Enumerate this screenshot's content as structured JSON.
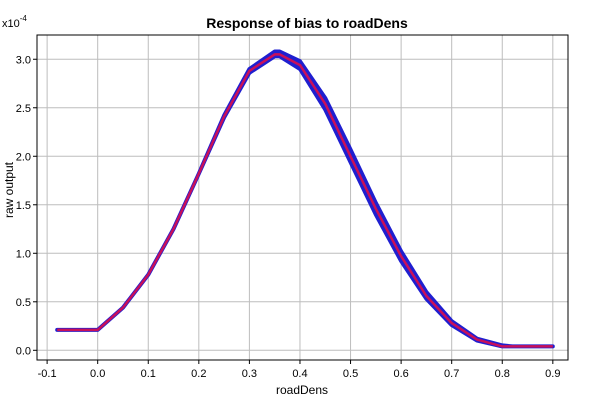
{
  "chart_data": {
    "type": "line",
    "title": "Response of bias to roadDens",
    "xlabel": "roadDens",
    "ylabel": "raw output",
    "y_multiplier": {
      "base": "x10",
      "exponent": "-4"
    },
    "xlim": [
      -0.12,
      0.93
    ],
    "ylim": [
      -0.1,
      3.25
    ],
    "x_ticks": [
      -0.1,
      0.0,
      0.1,
      0.2,
      0.3,
      0.4,
      0.5,
      0.6,
      0.7,
      0.8,
      0.9
    ],
    "x_tick_labels": [
      "-0.1",
      "0.0",
      "0.1",
      "0.2",
      "0.3",
      "0.4",
      "0.5",
      "0.6",
      "0.7",
      "0.8",
      "0.9"
    ],
    "y_ticks": [
      0.0,
      0.5,
      1.0,
      1.5,
      2.0,
      2.5,
      3.0
    ],
    "y_tick_labels": [
      "0.0",
      "0.5",
      "1.0",
      "1.5",
      "2.0",
      "2.5",
      "3.0"
    ],
    "grid": true,
    "series": [
      {
        "color": "#1f1fd0",
        "style": "band",
        "x": [
          -0.08,
          0.0,
          0.05,
          0.1,
          0.15,
          0.2,
          0.25,
          0.3,
          0.35,
          0.36,
          0.4,
          0.45,
          0.5,
          0.55,
          0.6,
          0.65,
          0.7,
          0.75,
          0.8,
          0.82,
          0.9
        ],
        "upper": [
          0.21,
          0.21,
          0.44,
          0.78,
          1.25,
          1.82,
          2.42,
          2.9,
          3.08,
          3.08,
          2.98,
          2.6,
          2.07,
          1.52,
          1.02,
          0.6,
          0.3,
          0.12,
          0.05,
          0.04,
          0.04
        ],
        "lower": [
          0.21,
          0.21,
          0.44,
          0.78,
          1.25,
          1.82,
          2.4,
          2.86,
          3.03,
          3.03,
          2.9,
          2.48,
          1.94,
          1.4,
          0.92,
          0.53,
          0.26,
          0.1,
          0.04,
          0.04,
          0.04
        ]
      },
      {
        "color": "#c8105a",
        "style": "line",
        "x": [
          -0.08,
          0.0,
          0.05,
          0.1,
          0.15,
          0.2,
          0.25,
          0.3,
          0.35,
          0.36,
          0.4,
          0.45,
          0.5,
          0.55,
          0.6,
          0.65,
          0.7,
          0.75,
          0.8,
          0.82,
          0.9
        ],
        "values": [
          0.21,
          0.21,
          0.44,
          0.78,
          1.25,
          1.82,
          2.41,
          2.88,
          3.05,
          3.05,
          2.94,
          2.54,
          2.0,
          1.46,
          0.97,
          0.56,
          0.28,
          0.11,
          0.04,
          0.04,
          0.04
        ]
      }
    ]
  }
}
